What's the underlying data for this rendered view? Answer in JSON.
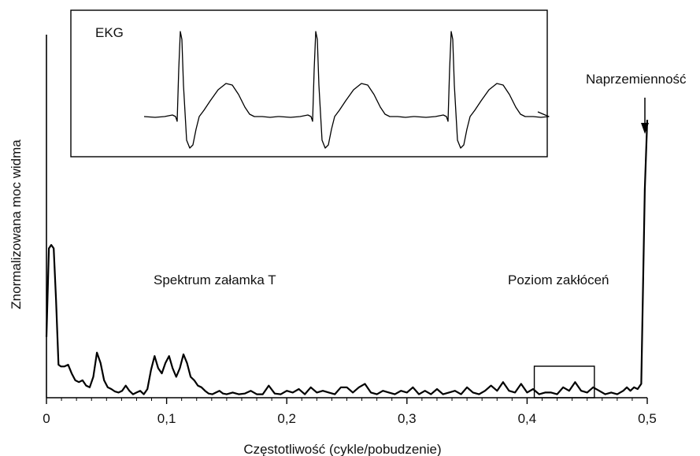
{
  "chart_data": {
    "type": "line",
    "xlabel": "Częstotliwość (cykle/pobudzenie)",
    "ylabel": "Znormalizowana moc widma",
    "xlim": [
      0,
      0.5
    ],
    "ylim": [
      0,
      1
    ],
    "x_ticks": [
      "0",
      "0,1",
      "0,2",
      "0,3",
      "0,4",
      "0,5"
    ],
    "x_tick_values": [
      0,
      0.1,
      0.2,
      0.3,
      0.4,
      0.5
    ],
    "grid": false,
    "annotations": {
      "t_wave_spectrum": "Spektrum załamka T",
      "noise_level": "Poziom zakłóceń",
      "alternans": "Naprzemienność",
      "ekg_inset": "EKG"
    },
    "noise_box_x_range": [
      0.406,
      0.456
    ],
    "series": [
      {
        "x": [
          0,
          0.002,
          0.004,
          0.006,
          0.008,
          0.01,
          0.012,
          0.015,
          0.018,
          0.021,
          0.024,
          0.027,
          0.03,
          0.033,
          0.036,
          0.039,
          0.042,
          0.045,
          0.048,
          0.051,
          0.054,
          0.057,
          0.06,
          0.063,
          0.066,
          0.069,
          0.072,
          0.075,
          0.078,
          0.081,
          0.084,
          0.087,
          0.09,
          0.093,
          0.096,
          0.099,
          0.102,
          0.105,
          0.108,
          0.111,
          0.114,
          0.117,
          0.12,
          0.123,
          0.126,
          0.129,
          0.132,
          0.135,
          0.138,
          0.141,
          0.144,
          0.147,
          0.15,
          0.155,
          0.16,
          0.165,
          0.17,
          0.175,
          0.18,
          0.185,
          0.19,
          0.195,
          0.2,
          0.205,
          0.21,
          0.215,
          0.22,
          0.225,
          0.23,
          0.235,
          0.24,
          0.245,
          0.25,
          0.255,
          0.26,
          0.265,
          0.27,
          0.275,
          0.28,
          0.285,
          0.29,
          0.295,
          0.3,
          0.305,
          0.31,
          0.315,
          0.32,
          0.325,
          0.33,
          0.335,
          0.34,
          0.345,
          0.35,
          0.355,
          0.36,
          0.365,
          0.37,
          0.375,
          0.38,
          0.385,
          0.39,
          0.395,
          0.4,
          0.405,
          0.41,
          0.415,
          0.42,
          0.425,
          0.43,
          0.435,
          0.44,
          0.445,
          0.45,
          0.455,
          0.46,
          0.465,
          0.47,
          0.475,
          0.48,
          0.483,
          0.486,
          0.489,
          0.492,
          0.495,
          0.498,
          0.5
        ],
        "y": [
          0.175,
          0.43,
          0.44,
          0.43,
          0.28,
          0.095,
          0.09,
          0.09,
          0.095,
          0.07,
          0.05,
          0.045,
          0.05,
          0.035,
          0.03,
          0.06,
          0.13,
          0.1,
          0.05,
          0.03,
          0.025,
          0.018,
          0.015,
          0.02,
          0.035,
          0.02,
          0.01,
          0.015,
          0.02,
          0.01,
          0.025,
          0.08,
          0.12,
          0.085,
          0.07,
          0.1,
          0.12,
          0.085,
          0.06,
          0.085,
          0.125,
          0.1,
          0.06,
          0.05,
          0.035,
          0.03,
          0.02,
          0.012,
          0.01,
          0.015,
          0.02,
          0.012,
          0.01,
          0.015,
          0.01,
          0.012,
          0.02,
          0.01,
          0.01,
          0.035,
          0.012,
          0.01,
          0.02,
          0.015,
          0.025,
          0.01,
          0.03,
          0.015,
          0.02,
          0.015,
          0.01,
          0.03,
          0.03,
          0.015,
          0.03,
          0.04,
          0.015,
          0.01,
          0.02,
          0.015,
          0.01,
          0.02,
          0.015,
          0.03,
          0.01,
          0.02,
          0.01,
          0.025,
          0.01,
          0.015,
          0.02,
          0.01,
          0.03,
          0.015,
          0.01,
          0.02,
          0.035,
          0.02,
          0.045,
          0.02,
          0.015,
          0.04,
          0.015,
          0.025,
          0.01,
          0.015,
          0.015,
          0.01,
          0.03,
          0.02,
          0.045,
          0.02,
          0.015,
          0.03,
          0.02,
          0.01,
          0.015,
          0.01,
          0.02,
          0.03,
          0.02,
          0.03,
          0.025,
          0.04,
          0.6,
          0.8
        ]
      }
    ]
  }
}
